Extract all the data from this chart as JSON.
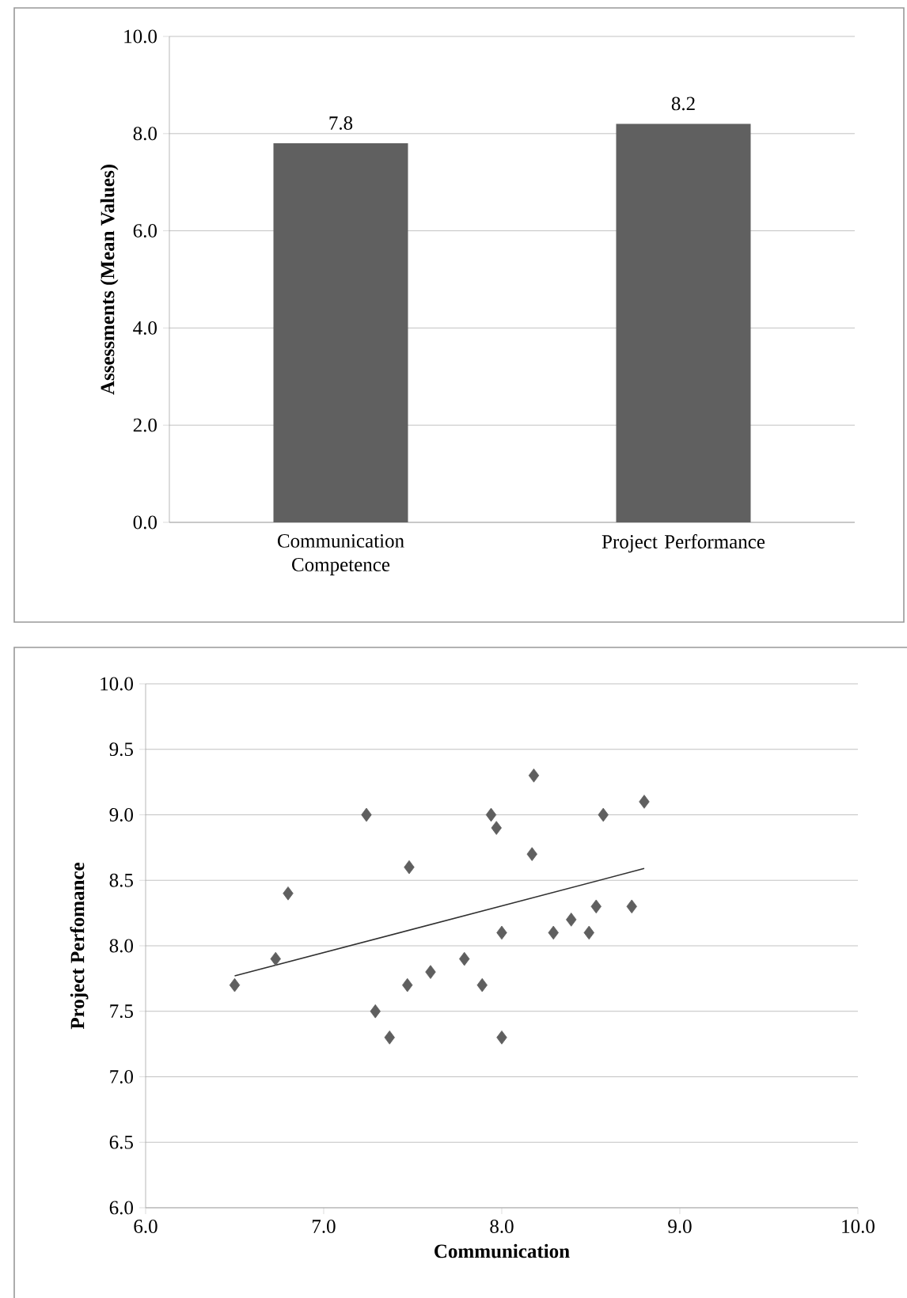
{
  "chart_data": [
    {
      "type": "bar",
      "ylabel": "Assessments (Mean Values)",
      "categories": [
        "Communication Competence",
        "Project Performance"
      ],
      "values": [
        7.8,
        8.2
      ],
      "value_labels": [
        "7.8",
        "8.2"
      ],
      "color": "#606060",
      "ylim": [
        0,
        10
      ],
      "yticks": [
        {
          "value": 0,
          "label": "0.0"
        },
        {
          "value": 2,
          "label": "2.0"
        },
        {
          "value": 4,
          "label": "4.0"
        },
        {
          "value": 6,
          "label": "6.0"
        },
        {
          "value": 8,
          "label": "8.0"
        },
        {
          "value": 10,
          "label": "10.0"
        }
      ],
      "grid": "y",
      "legend": false
    },
    {
      "type": "scatter",
      "xlabel": "Communication",
      "ylabel": "Project Perfomance",
      "xlim": [
        6,
        10
      ],
      "ylim": [
        6,
        10
      ],
      "xticks": [
        {
          "value": 6,
          "label": "6.0"
        },
        {
          "value": 7,
          "label": "7.0"
        },
        {
          "value": 8,
          "label": "8.0"
        },
        {
          "value": 9,
          "label": "9.0"
        },
        {
          "value": 10,
          "label": "10.0"
        }
      ],
      "yticks": [
        {
          "value": 6,
          "label": "6.0"
        },
        {
          "value": 6.5,
          "label": "6.5"
        },
        {
          "value": 7,
          "label": "7.0"
        },
        {
          "value": 7.5,
          "label": "7.5"
        },
        {
          "value": 8,
          "label": "8.0"
        },
        {
          "value": 8.5,
          "label": "8.5"
        },
        {
          "value": 9,
          "label": "9.0"
        },
        {
          "value": 9.5,
          "label": "9.5"
        },
        {
          "value": 10,
          "label": "10.0"
        }
      ],
      "grid": "y",
      "legend": false,
      "series": [
        {
          "type": "scatter",
          "marker": "diamond",
          "color": "#5f5f5f",
          "x": [
            6.5,
            6.73,
            6.8,
            7.24,
            7.29,
            7.37,
            7.48,
            7.47,
            7.6,
            7.79,
            7.89,
            7.94,
            7.97,
            8.0,
            8.0,
            8.18,
            8.17,
            8.29,
            8.39,
            8.49,
            8.53,
            8.57,
            8.73,
            8.8
          ],
          "values": [
            7.7,
            7.9,
            8.4,
            9.0,
            7.5,
            7.3,
            8.6,
            7.7,
            7.8,
            7.9,
            7.7,
            9.0,
            8.9,
            8.1,
            7.3,
            9.3,
            8.7,
            8.1,
            8.2,
            8.1,
            8.3,
            9.0,
            8.3,
            9.1
          ]
        },
        {
          "type": "line",
          "marker": "none",
          "line_style": "solid",
          "color": "#303030",
          "x": [
            6.5,
            8.8
          ],
          "values": [
            7.77,
            8.59
          ]
        }
      ]
    }
  ]
}
